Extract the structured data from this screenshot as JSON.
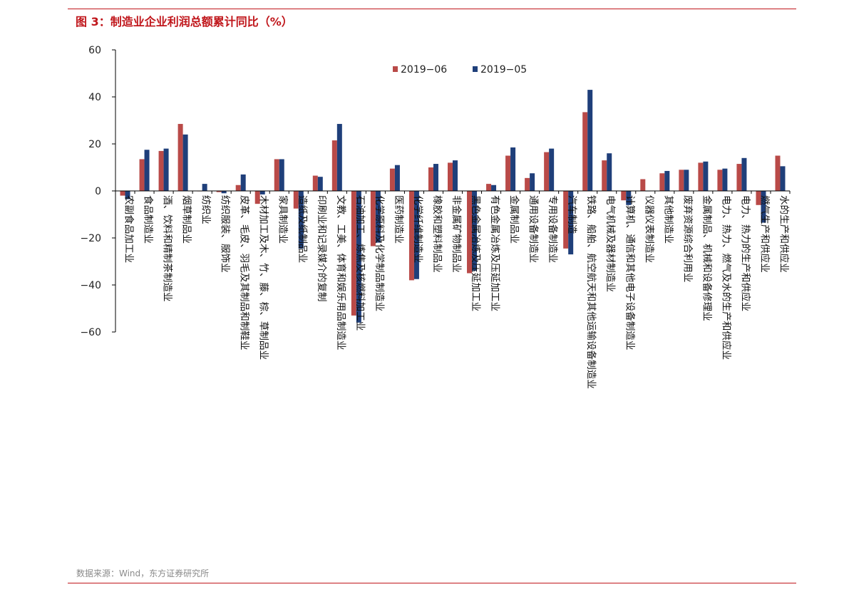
{
  "header": {
    "title": "图 3：制造业企业利润总额累计同比（%）"
  },
  "footer": {
    "source": "数据来源：Wind，东方证券研究所"
  },
  "colors": {
    "series_2019_06": "#b94a48",
    "series_2019_05": "#1f3f7a",
    "accent": "#c0161b"
  },
  "chart_data": {
    "type": "bar",
    "title": "",
    "xlabel": "",
    "ylabel": "",
    "ylim": [
      -60,
      60
    ],
    "yticks": [
      60,
      40,
      20,
      0,
      -20,
      -40,
      -60
    ],
    "ytick_labels": [
      "60",
      "40",
      "20",
      "0",
      "−20",
      "−40",
      "−60"
    ],
    "grid": false,
    "legend_position": "top-right",
    "categories": [
      "农副食品加工业",
      "食品制造业",
      "酒、饮料和精制茶制造业",
      "烟草制品业",
      "纺织业",
      "纺织服装、服饰业",
      "皮革、毛皮、羽毛及其制品和制鞋业",
      "木材加工及木、竹、藤、棕、草制品业",
      "家具制造业",
      "造纸及纸制品业",
      "印刷业和记录媒介的复制",
      "文教、工美、体育和娱乐用品制造业",
      "石油加工、炼焦及核燃料加工业",
      "化学原料及化学制品制造业",
      "医药制造业",
      "化学纤维制造业",
      "橡胶和塑料制品业",
      "非金属矿物制品业",
      "黑色金属冶炼及压延加工业",
      "有色金属冶炼及压延加工业",
      "金属制品业",
      "通用设备制造业",
      "专用设备制造业",
      "汽车制造",
      "铁路、船舶、航空航天和其他运输设备制造业",
      "电气机械及器材制造业",
      "计算机、通信和其他电子设备制造业",
      "仪器仪表制造业",
      "其他制造业",
      "废弃资源综合利用业",
      "金属制品、机械和设备修理业",
      "电力、热力、燃气及水的生产和供应业",
      "电力、热力的生产和供应业",
      "燃气生产和供应业",
      "水的生产和供应业"
    ],
    "series": [
      {
        "name": "2019−06",
        "values": [
          -2,
          13.5,
          17,
          28.5,
          0,
          -0.5,
          2.5,
          -5.5,
          13.5,
          -7.5,
          6.5,
          21.5,
          -53,
          -23.5,
          9.5,
          -38,
          10,
          12,
          -35,
          3,
          15,
          5.5,
          16.5,
          -24.5,
          33.5,
          13,
          -4,
          5,
          7.5,
          9,
          12,
          9,
          11.5,
          -6,
          15
        ]
      },
      {
        "name": "2019−05",
        "values": [
          -3.5,
          17.5,
          18,
          24,
          3,
          -1,
          7,
          -1.5,
          13.5,
          -24.5,
          6,
          28.5,
          -56,
          -22,
          11,
          -37.5,
          11.5,
          13,
          -34,
          2.5,
          18.5,
          7.5,
          18,
          -27,
          43,
          16,
          -6,
          0,
          8.5,
          9,
          12.5,
          9.5,
          14,
          -13.5,
          10.5
        ]
      }
    ]
  }
}
